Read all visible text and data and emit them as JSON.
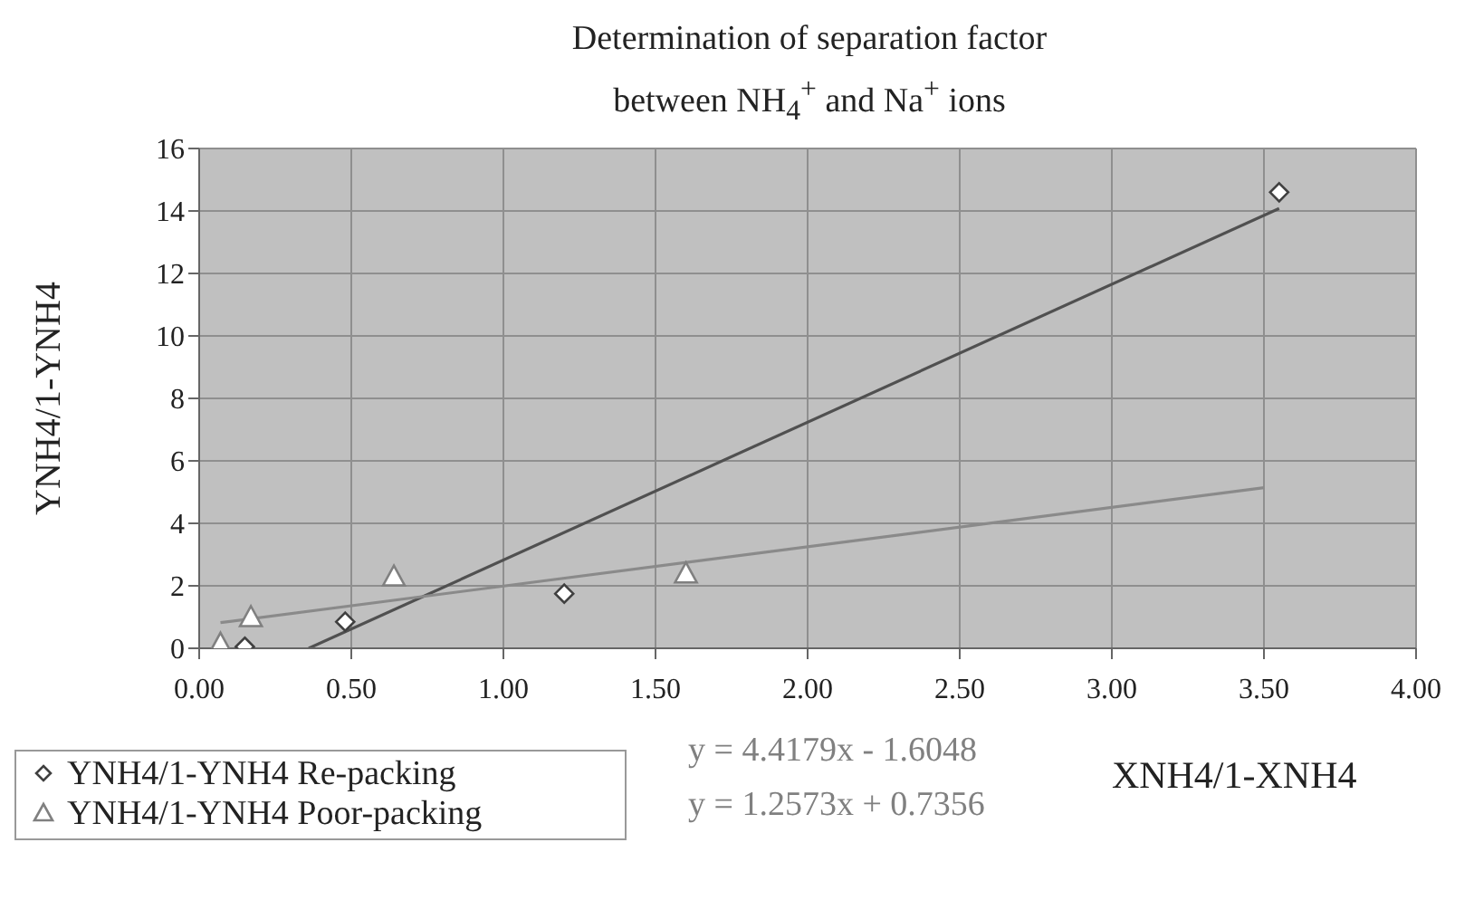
{
  "chart_data": {
    "type": "scatter",
    "title": "Determination of separation factor",
    "subtitle": "between NH$_{4}$$^{+}$ and Na$^{+}$ ions",
    "xlabel": "XNH4/1-XNH4",
    "ylabel": "YNH4/1-YNH4",
    "series": [
      {
        "name": "YNH4/1-YNH4 Re-packing",
        "marker": "diamond",
        "color": "#404040",
        "x": [
          0.15,
          0.48,
          1.2,
          3.55
        ],
        "values": [
          0.05,
          0.85,
          1.75,
          14.6
        ]
      },
      {
        "name": "YNH4/1-YNH4 Poor-packing",
        "marker": "triangle",
        "color": "#808080",
        "x": [
          0.07,
          0.17,
          0.64,
          1.6
        ],
        "values": [
          0.15,
          1.0,
          2.3,
          2.4
        ]
      },
      {
        "type": "line",
        "marker": "none",
        "color": "#505050",
        "x": [
          0.36,
          3.55
        ],
        "values": [
          0,
          14.08
        ]
      },
      {
        "type": "line",
        "marker": "none",
        "color": "#8a8a8a",
        "x": [
          0.07,
          3.5
        ],
        "values": [
          0.82,
          5.14
        ]
      }
    ],
    "annotations": [
      "y = 4.4179x - 1.6048",
      "y = 1.2573x + 0.7356"
    ],
    "xlim": [
      0,
      4
    ],
    "xticks": [
      {
        "value": 0,
        "label": "0.00"
      },
      {
        "value": 0.5,
        "label": "0.50"
      },
      {
        "value": 1,
        "label": "1.00"
      },
      {
        "value": 1.5,
        "label": "1.50"
      },
      {
        "value": 2,
        "label": "2.00"
      },
      {
        "value": 2.5,
        "label": "2.50"
      },
      {
        "value": 3,
        "label": "3.00"
      },
      {
        "value": 3.5,
        "label": "3.50"
      },
      {
        "value": 4,
        "label": "4.00"
      }
    ],
    "ylim": [
      0,
      16
    ],
    "yticks": [
      0,
      2,
      4,
      6,
      8,
      10,
      12,
      14,
      16
    ],
    "grid": true,
    "legend": "bottom left"
  }
}
